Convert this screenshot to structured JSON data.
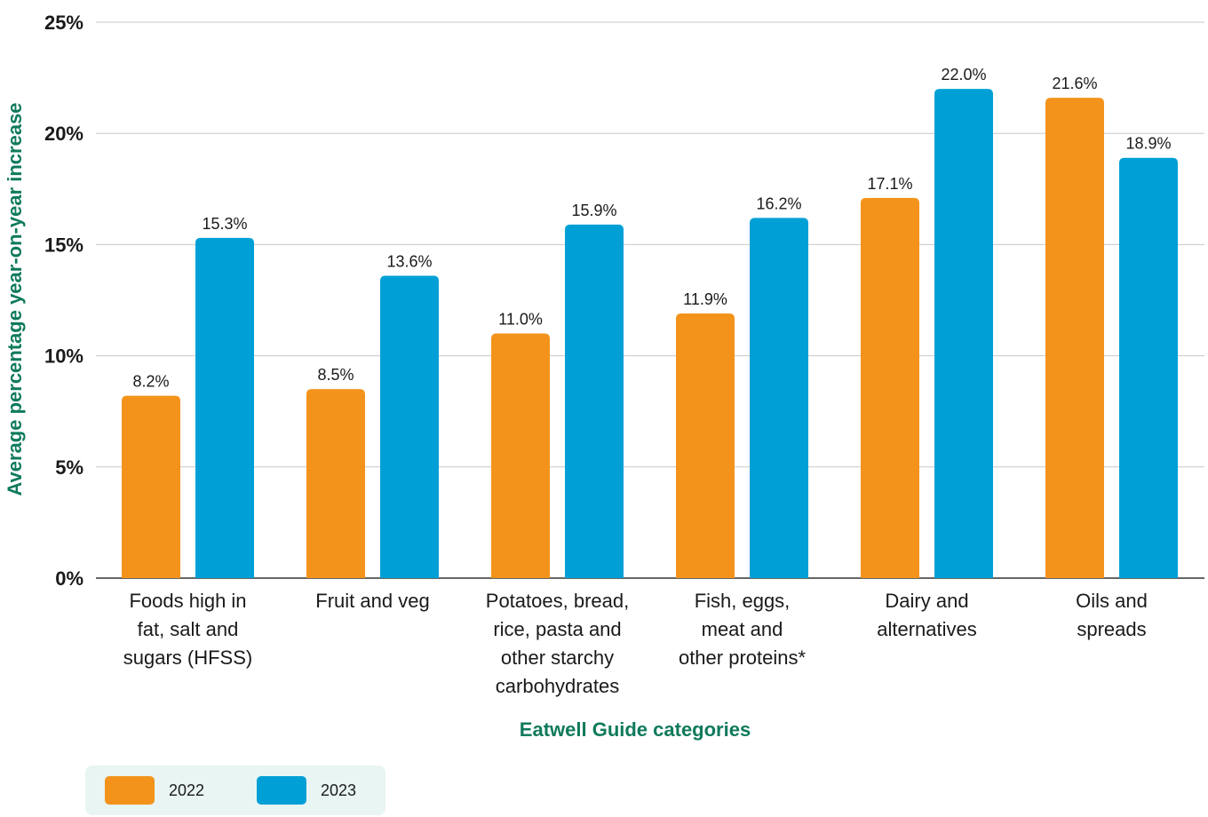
{
  "chart_data": {
    "type": "bar",
    "xlabel": "Eatwell Guide categories",
    "ylabel": "Average percentage year-on-year increase",
    "ylim": [
      0,
      25
    ],
    "yticks": [
      "0%",
      "5%",
      "10%",
      "15%",
      "20%",
      "25%"
    ],
    "ytick_values": [
      0,
      5,
      10,
      15,
      20,
      25
    ],
    "grid": true,
    "legend_position": "bottom-left",
    "categories": [
      [
        "Foods high in",
        "fat, salt and",
        "sugars (HFSS)"
      ],
      [
        "Fruit and veg"
      ],
      [
        "Potatoes, bread,",
        "rice, pasta and",
        "other starchy",
        "carbohydrates"
      ],
      [
        "Fish, eggs,",
        "meat and",
        "other proteins*"
      ],
      [
        "Dairy and",
        "alternatives"
      ],
      [
        "Oils and",
        "spreads"
      ]
    ],
    "series": [
      {
        "name": "2022",
        "color": "#f3931b",
        "values": [
          8.2,
          8.5,
          11.0,
          11.9,
          17.1,
          21.6
        ],
        "labels": [
          "8.2%",
          "8.5%",
          "11.0%",
          "11.9%",
          "17.1%",
          "21.6%"
        ]
      },
      {
        "name": "2023",
        "color": "#00a0d6",
        "values": [
          15.3,
          13.6,
          15.9,
          16.2,
          22.0,
          18.9
        ],
        "labels": [
          "15.3%",
          "13.6%",
          "15.9%",
          "16.2%",
          "22.0%",
          "18.9%"
        ]
      }
    ]
  },
  "colors": {
    "axis_title": "#0f7a5c",
    "grid": "#c8c8c8",
    "legend_bg": "#e8f5f3"
  }
}
